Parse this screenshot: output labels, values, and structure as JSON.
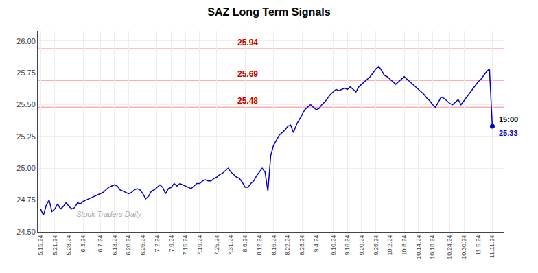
{
  "chart_data": {
    "type": "line",
    "title": "SAZ Long Term Signals",
    "color": "#0000cc",
    "grid": true,
    "ylim": [
      24.5,
      26.08
    ],
    "yticks": [
      {
        "value": 24.5,
        "label": "24.50"
      },
      {
        "value": 24.75,
        "label": "24.75"
      },
      {
        "value": 25.0,
        "label": "25.00"
      },
      {
        "value": 25.25,
        "label": "25.25"
      },
      {
        "value": 25.5,
        "label": "25.50"
      },
      {
        "value": 25.75,
        "label": "25.75"
      },
      {
        "value": 26.0,
        "label": "26.00"
      }
    ],
    "hlines": [
      {
        "y": 25.94,
        "label": "25.94",
        "color": "#cc0000"
      },
      {
        "y": 25.69,
        "label": "25.69",
        "color": "#cc0000"
      },
      {
        "y": 25.48,
        "label": "25.48",
        "color": "#cc0000"
      }
    ],
    "annotations": [
      {
        "text": "15:00",
        "color": "#000000"
      },
      {
        "text": "25.33",
        "color": "#0000cc"
      }
    ],
    "watermark": {
      "text": "Stock Traders Daily",
      "color": "#aaaaaa"
    },
    "categories": [
      "5.15.24",
      null,
      null,
      null,
      null,
      "5.21.24",
      null,
      null,
      null,
      null,
      "5.28.24",
      null,
      null,
      null,
      null,
      "6.3.24",
      null,
      null,
      null,
      null,
      null,
      "6.7.24",
      null,
      null,
      null,
      null,
      "6.13.24",
      null,
      null,
      null,
      null,
      "6.20.24",
      null,
      null,
      null,
      null,
      "6.26.24",
      null,
      null,
      null,
      null,
      "7.2.24",
      null,
      null,
      null,
      null,
      "7.9.24",
      null,
      null,
      null,
      null,
      "7.15.24",
      null,
      null,
      null,
      null,
      "7.19.24",
      null,
      null,
      null,
      null,
      null,
      "7.25.24",
      null,
      null,
      null,
      null,
      "7.31.24",
      null,
      null,
      null,
      null,
      "8.6.24",
      null,
      null,
      null,
      null,
      "8.12.24",
      null,
      null,
      null,
      null,
      "8.16.24",
      null,
      null,
      null,
      null,
      "8.22.24",
      null,
      null,
      null,
      null,
      "8.28.24",
      null,
      null,
      null,
      null,
      "9.4.24",
      null,
      null,
      null,
      null,
      null,
      "9.10.24",
      null,
      null,
      null,
      null,
      "9.16.24",
      null,
      null,
      null,
      null,
      "9.20.24",
      null,
      null,
      null,
      null,
      "9.26.24",
      null,
      null,
      null,
      null,
      "10.2.24",
      null,
      null,
      null,
      null,
      "10.8.24",
      null,
      null,
      null,
      null,
      "10.14.24",
      null,
      null,
      null,
      null,
      "10.18.24",
      null,
      null,
      null,
      null,
      null,
      "10.24.24",
      null,
      null,
      null,
      null,
      "10.30.24",
      null,
      null,
      null,
      null,
      "11.5.24",
      null,
      null,
      null,
      null,
      "11.11.24"
    ],
    "values": [
      24.68,
      24.63,
      24.71,
      24.75,
      24.66,
      24.68,
      24.72,
      24.68,
      24.7,
      24.73,
      24.7,
      24.68,
      24.69,
      24.73,
      24.72,
      24.74,
      24.75,
      24.76,
      24.77,
      24.78,
      24.79,
      24.8,
      24.81,
      24.83,
      24.85,
      24.86,
      24.87,
      24.86,
      24.83,
      24.82,
      24.81,
      24.8,
      24.81,
      24.83,
      24.84,
      24.83,
      24.8,
      24.76,
      24.78,
      24.82,
      24.83,
      24.85,
      24.87,
      24.85,
      24.8,
      24.84,
      24.85,
      24.88,
      24.86,
      24.88,
      24.87,
      24.86,
      24.85,
      24.84,
      24.86,
      24.88,
      24.88,
      24.9,
      24.91,
      24.9,
      24.9,
      24.92,
      24.93,
      24.95,
      24.96,
      24.98,
      25.0,
      24.97,
      24.95,
      24.93,
      24.92,
      24.89,
      24.85,
      24.85,
      24.88,
      24.9,
      24.94,
      24.97,
      25.0,
      24.97,
      24.82,
      25.1,
      25.18,
      25.22,
      25.26,
      25.28,
      25.3,
      25.33,
      25.34,
      25.28,
      25.34,
      25.38,
      25.42,
      25.46,
      25.48,
      25.5,
      25.48,
      25.46,
      25.47,
      25.5,
      25.52,
      25.55,
      25.58,
      25.6,
      25.62,
      25.61,
      25.62,
      25.63,
      25.62,
      25.64,
      25.62,
      25.6,
      25.64,
      25.66,
      25.68,
      25.7,
      25.72,
      25.75,
      25.78,
      25.8,
      25.77,
      25.73,
      25.72,
      25.7,
      25.68,
      25.66,
      25.68,
      25.7,
      25.72,
      25.7,
      25.68,
      25.66,
      25.64,
      25.62,
      25.6,
      25.58,
      25.55,
      25.53,
      25.5,
      25.48,
      25.52,
      25.56,
      25.55,
      25.53,
      25.51,
      25.5,
      25.52,
      25.54,
      25.5,
      25.53,
      25.56,
      25.59,
      25.62,
      25.65,
      25.68,
      25.7,
      25.73,
      25.76,
      25.78,
      25.33
    ]
  }
}
